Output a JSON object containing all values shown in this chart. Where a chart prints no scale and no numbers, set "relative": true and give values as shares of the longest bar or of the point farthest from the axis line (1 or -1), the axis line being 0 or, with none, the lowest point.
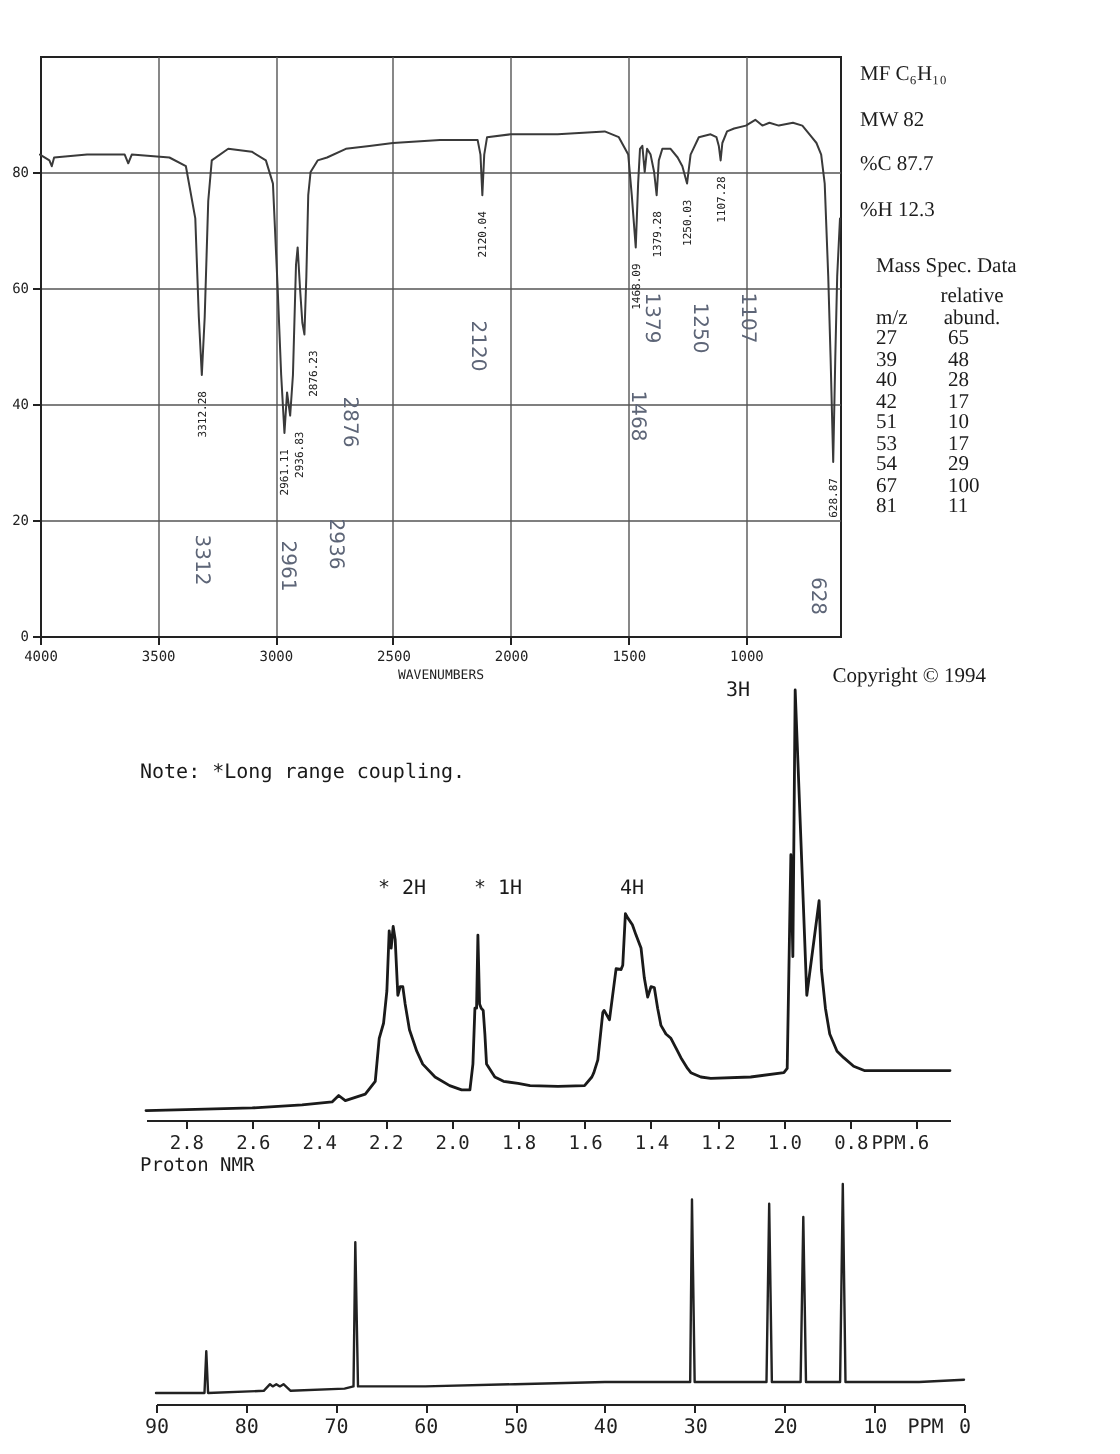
{
  "chart_data": [
    {
      "type": "line",
      "xlabel": "WAVENUMBERS",
      "x": [
        4000,
        3960,
        3950,
        3940,
        3800,
        3640,
        3625,
        3610,
        3450,
        3380,
        3340,
        3325,
        3312.28,
        3300,
        3285,
        3270,
        3200,
        3100,
        3040,
        3010,
        2990,
        2975,
        2961.11,
        2950,
        2936.83,
        2925,
        2912,
        2905,
        2895,
        2885,
        2876.23,
        2868,
        2860,
        2850,
        2820,
        2780,
        2700,
        2600,
        2500,
        2300,
        2140,
        2128,
        2120.04,
        2112,
        2100,
        2000,
        1800,
        1600,
        1540,
        1500,
        1485,
        1468.09,
        1458,
        1450,
        1440,
        1430,
        1420,
        1405,
        1390,
        1379.28,
        1370,
        1355,
        1320,
        1290,
        1270,
        1250.03,
        1235,
        1200,
        1150,
        1125,
        1115,
        1107.28,
        1100,
        1080,
        1050,
        1000,
        960,
        930,
        900,
        860,
        800,
        760,
        720,
        700,
        680,
        665,
        650,
        640,
        628.87,
        620,
        612,
        600
      ],
      "values": [
        83,
        82,
        81,
        82.5,
        83,
        83,
        81.5,
        83,
        82.5,
        81,
        72,
        55,
        45,
        55,
        75,
        82,
        84,
        83.5,
        82,
        78,
        60,
        45,
        35,
        42,
        38,
        45,
        64,
        67,
        60,
        54,
        52,
        62,
        76,
        80,
        82,
        82.5,
        84,
        84.5,
        85,
        85.5,
        85.5,
        83,
        76,
        83,
        86,
        86.5,
        86.5,
        87,
        86,
        83,
        76,
        67,
        78,
        84,
        84.5,
        80,
        84,
        83,
        80,
        76,
        82,
        84,
        84,
        82.5,
        81,
        78,
        83,
        86,
        86.5,
        86,
        84.5,
        82,
        85,
        87,
        87.5,
        88,
        89,
        88,
        88.5,
        88,
        88.5,
        88,
        86,
        85,
        83,
        78,
        62,
        48,
        30,
        48,
        62,
        72
      ],
      "color": "#3a3a3a",
      "xlim": [
        4000,
        600
      ],
      "xticks": [
        4000,
        3500,
        3000,
        2500,
        2000,
        1500,
        1000
      ],
      "ylim": [
        0,
        100
      ],
      "yticks": [
        0,
        20,
        40,
        60,
        80
      ],
      "grid": true,
      "annotations": [
        {
          "text": "3312.28",
          "x": 3312.28,
          "y": 45
        },
        {
          "text": "2961.11",
          "x": 2961.11,
          "y": 35
        },
        {
          "text": "2936.83",
          "x": 2936.83,
          "y": 38
        },
        {
          "text": "2876.23",
          "x": 2876.23,
          "y": 52
        },
        {
          "text": "2120.04",
          "x": 2120.04,
          "y": 76
        },
        {
          "text": "1468.09",
          "x": 1468.09,
          "y": 67
        },
        {
          "text": "1379.28",
          "x": 1379.28,
          "y": 76
        },
        {
          "text": "1250.03",
          "x": 1250.03,
          "y": 78
        },
        {
          "text": "1107.28",
          "x": 1107.28,
          "y": 82
        },
        {
          "text": "628.87",
          "x": 628.87,
          "y": 30
        },
        "3312",
        "2961",
        "2936",
        "2876",
        "2120",
        "1468",
        "1379",
        "1250",
        "1107",
        "628"
      ]
    },
    {
      "type": "other",
      "annotations": [
        "MF C₆H₁₀",
        "MW 82",
        "%C 87.7",
        "%H 12.3"
      ],
      "title": "Mass Spec. Data",
      "xlabel": "m/z",
      "ylabel": "relative abund.",
      "categories": [
        "27",
        "39",
        "40",
        "42",
        "51",
        "53",
        "54",
        "67",
        "81"
      ],
      "values": [
        65,
        48,
        28,
        17,
        10,
        17,
        29,
        100,
        11
      ],
      "data_labels": true
    },
    {
      "type": "line",
      "title": "Proton NMR",
      "xlabel": "PPM",
      "relative": true,
      "x": [
        2.92,
        2.8,
        2.6,
        2.45,
        2.36,
        2.34,
        2.32,
        2.26,
        2.23,
        2.218,
        2.205,
        2.195,
        2.188,
        2.182,
        2.176,
        2.17,
        2.162,
        2.155,
        2.147,
        2.14,
        2.127,
        2.105,
        2.087,
        2.05,
        2.006,
        1.97,
        1.945,
        1.936,
        1.93,
        1.925,
        1.921,
        1.916,
        1.911,
        1.905,
        1.9,
        1.895,
        1.87,
        1.844,
        1.8,
        1.764,
        1.68,
        1.6,
        1.578,
        1.572,
        1.56,
        1.545,
        1.541,
        1.525,
        1.505,
        1.49,
        1.485,
        1.477,
        1.47,
        1.456,
        1.445,
        1.43,
        1.42,
        1.41,
        1.4,
        1.39,
        1.38,
        1.37,
        1.355,
        1.34,
        1.32,
        1.31,
        1.29,
        1.28,
        1.25,
        1.22,
        1.1,
        1.0,
        0.99,
        0.979,
        0.973,
        0.966,
        0.931,
        0.894,
        0.887,
        0.875,
        0.862,
        0.84,
        0.82,
        0.79,
        0.758,
        0.7,
        0.6,
        0.5
      ],
      "values": [
        0.022,
        0.024,
        0.028,
        0.035,
        0.042,
        0.057,
        0.045,
        0.06,
        0.09,
        0.19,
        0.225,
        0.3,
        0.44,
        0.4,
        0.45,
        0.42,
        0.29,
        0.31,
        0.31,
        0.27,
        0.21,
        0.16,
        0.13,
        0.1,
        0.08,
        0.07,
        0.07,
        0.13,
        0.26,
        0.26,
        0.43,
        0.27,
        0.26,
        0.255,
        0.2,
        0.13,
        0.1,
        0.09,
        0.085,
        0.08,
        0.078,
        0.08,
        0.1,
        0.11,
        0.14,
        0.25,
        0.255,
        0.233,
        0.352,
        0.35,
        0.36,
        0.48,
        0.47,
        0.454,
        0.43,
        0.4,
        0.33,
        0.286,
        0.31,
        0.308,
        0.26,
        0.22,
        0.2,
        0.19,
        0.16,
        0.145,
        0.12,
        0.11,
        0.1,
        0.097,
        0.1,
        0.11,
        0.12,
        0.617,
        0.38,
        1.0,
        0.29,
        0.51,
        0.35,
        0.26,
        0.2,
        0.16,
        0.145,
        0.125,
        0.115,
        0.115,
        0.115,
        0.115
      ],
      "color": "#1a1a1a",
      "xlim": [
        2.92,
        0.5
      ],
      "xticks": [
        2.8,
        2.6,
        2.4,
        2.2,
        {
          "value": 2,
          "label": "2.0"
        },
        1.8,
        1.6,
        1.4,
        1.2,
        {
          "value": 1,
          "label": "1.0"
        },
        0.8,
        {
          "value": 0.6,
          "label": ".6"
        }
      ],
      "annotations": [
        "3H",
        "Copyright © 1994",
        "Note: *Long range coupling.",
        "* 2H",
        "* 1H",
        "4H"
      ]
    },
    {
      "type": "line",
      "xlabel": "PPM",
      "relative": true,
      "x": [
        90,
        86,
        84.6,
        84.4,
        84.2,
        78,
        77.3,
        77,
        76.6,
        76.2,
        75.8,
        75,
        69,
        68,
        67.8,
        67.5,
        60,
        50,
        40,
        32,
        30.5,
        30.3,
        30,
        25,
        22,
        21.7,
        21.4,
        18.2,
        17.9,
        17.6,
        13.8,
        13.5,
        13.2,
        5,
        0
      ],
      "values": [
        0.05,
        0.05,
        0.05,
        0.24,
        0.05,
        0.06,
        0.09,
        0.08,
        0.09,
        0.08,
        0.09,
        0.06,
        0.07,
        0.08,
        0.735,
        0.08,
        0.08,
        0.09,
        0.1,
        0.1,
        0.1,
        0.93,
        0.1,
        0.1,
        0.1,
        0.91,
        0.1,
        0.1,
        0.85,
        0.1,
        0.1,
        1.0,
        0.1,
        0.1,
        0.11
      ],
      "color": "#222222",
      "xlim": [
        90,
        0
      ],
      "xticks": [
        90,
        80,
        70,
        60,
        50,
        40,
        30,
        20,
        10,
        0
      ]
    }
  ]
}
